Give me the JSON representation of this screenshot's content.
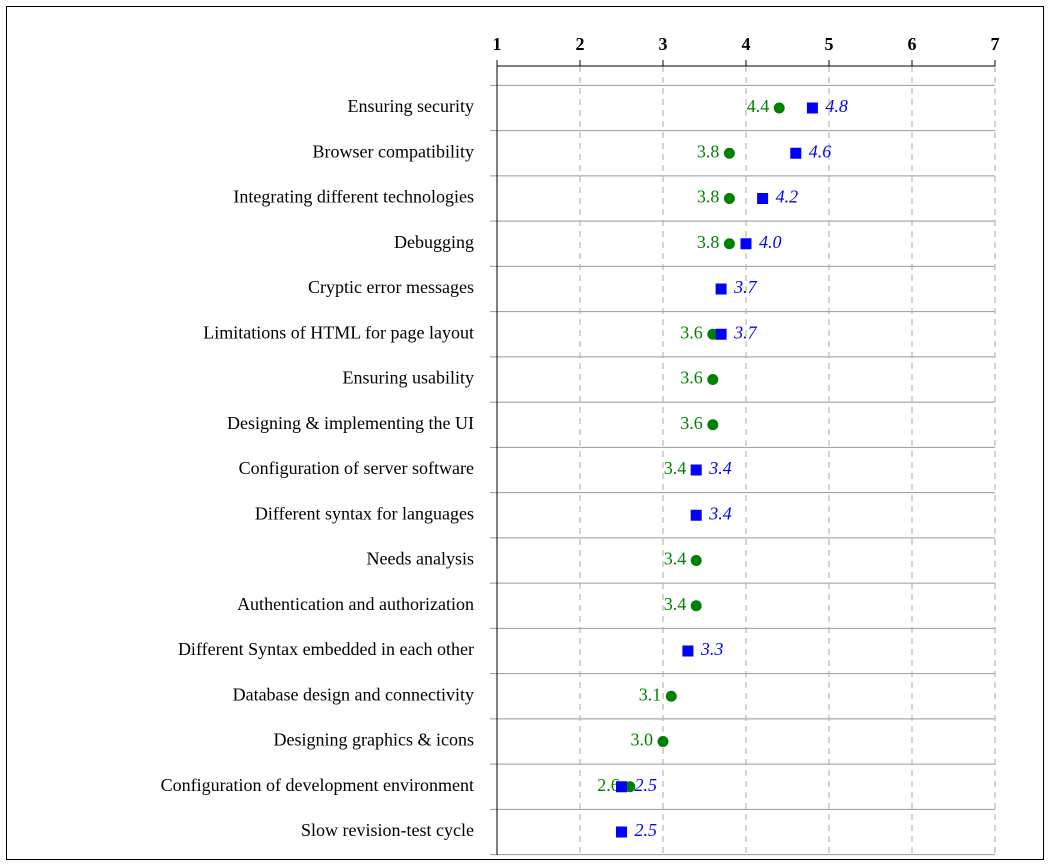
{
  "chart_data": {
    "type": "dot",
    "categories": [
      "Ensuring security",
      "Browser compatibility",
      "Integrating different technologies",
      "Debugging",
      "Cryptic error messages",
      "Limitations of HTML for page layout",
      "Ensuring usability",
      "Designing & implementing the UI",
      "Configuration of server software",
      "Different syntax for languages",
      "Needs analysis",
      "Authentication and authorization",
      "Different Syntax embedded in each other",
      "Database design and connectivity",
      "Designing graphics & icons",
      "Configuration of development environment",
      "Slow revision-test cycle"
    ],
    "series": [
      {
        "color": "#008000",
        "marker": "circle",
        "label_side": "left",
        "values": [
          4.4,
          3.8,
          3.8,
          3.8,
          null,
          3.6,
          3.6,
          3.6,
          3.4,
          null,
          3.4,
          3.4,
          null,
          3.1,
          3.0,
          2.6,
          null
        ],
        "value_labels": [
          "4.4",
          "3.8",
          "3.8",
          "3.8",
          null,
          "3.6",
          "3.6",
          "3.6",
          "3.4",
          null,
          "3.4",
          "3.4",
          null,
          "3.1",
          "3.0",
          "2.6",
          null
        ]
      },
      {
        "color": "#0000ff",
        "marker": "square",
        "label_side": "right",
        "values": [
          4.8,
          4.6,
          4.2,
          4.0,
          3.7,
          3.7,
          null,
          null,
          3.4,
          3.4,
          null,
          null,
          3.3,
          null,
          null,
          2.5,
          2.5
        ],
        "value_labels": [
          "4.8",
          "4.6",
          "4.2",
          "4.0",
          "3.7",
          "3.7",
          null,
          null,
          "3.4",
          "3.4",
          null,
          null,
          "3.3",
          null,
          null,
          "2.5",
          "2.5"
        ]
      }
    ],
    "xlim": [
      1,
      7
    ],
    "xticks": [
      1,
      2,
      3,
      4,
      5,
      6,
      7
    ],
    "grid": true
  }
}
